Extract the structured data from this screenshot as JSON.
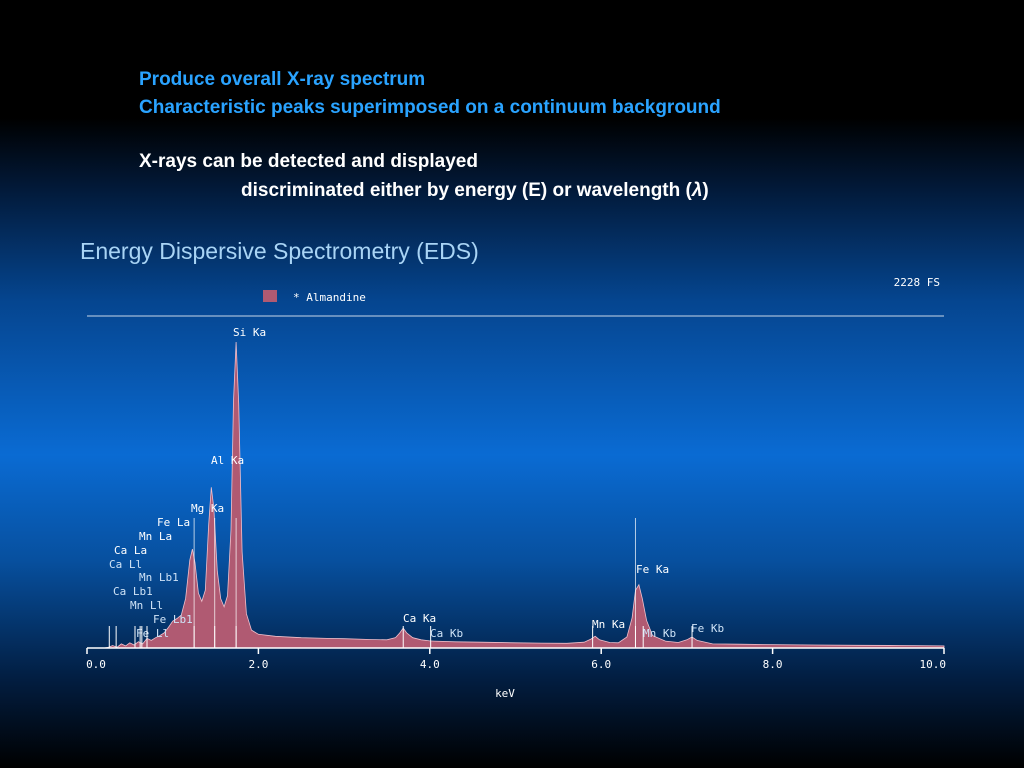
{
  "slide": {
    "line1": "Produce overall X-ray spectrum",
    "line2": "Characteristic peaks superimposed on a continuum background",
    "line3": "X-rays can be detected and displayed",
    "line4_pre": "discriminated either by energy (E) or wavelength (",
    "line4_symbol": "λ",
    "line4_post": ")",
    "section_title": "Energy Dispersive Spectrometry (EDS)"
  },
  "colors": {
    "heading_blue": "#2aa3ff",
    "spectrum_fill": "#b05a72",
    "spectrum_stroke": "#f0c0cc",
    "marker_line": "#ffffff"
  },
  "chart_data": {
    "type": "area",
    "title": "",
    "xlabel": "keV",
    "ylabel": "",
    "xlim": [
      0,
      10
    ],
    "full_scale_label": "2228 FS",
    "legend": {
      "name": "* Almandine",
      "color": "#b05a72",
      "position": "top-left"
    },
    "x_ticks": [
      "0.0",
      "2.0",
      "4.0",
      "6.0",
      "8.0",
      "10.0"
    ],
    "x_tick_values": [
      0,
      2,
      4,
      6,
      8,
      10
    ],
    "series": [
      {
        "name": "* Almandine",
        "points": [
          [
            0.0,
            0
          ],
          [
            0.2,
            0
          ],
          [
            0.25,
            5
          ],
          [
            0.3,
            18
          ],
          [
            0.35,
            5
          ],
          [
            0.4,
            30
          ],
          [
            0.45,
            15
          ],
          [
            0.5,
            38
          ],
          [
            0.55,
            22
          ],
          [
            0.6,
            46
          ],
          [
            0.65,
            30
          ],
          [
            0.7,
            70
          ],
          [
            0.75,
            55
          ],
          [
            0.8,
            75
          ],
          [
            0.85,
            90
          ],
          [
            0.9,
            110
          ],
          [
            0.95,
            150
          ],
          [
            1.0,
            195
          ],
          [
            1.05,
            215
          ],
          [
            1.1,
            240
          ],
          [
            1.15,
            360
          ],
          [
            1.2,
            640
          ],
          [
            1.23,
            720
          ],
          [
            1.26,
            620
          ],
          [
            1.3,
            400
          ],
          [
            1.34,
            340
          ],
          [
            1.38,
            420
          ],
          [
            1.42,
            900
          ],
          [
            1.45,
            1170
          ],
          [
            1.48,
            1020
          ],
          [
            1.52,
            560
          ],
          [
            1.56,
            360
          ],
          [
            1.6,
            300
          ],
          [
            1.64,
            380
          ],
          [
            1.68,
            860
          ],
          [
            1.71,
            1800
          ],
          [
            1.74,
            2228
          ],
          [
            1.77,
            1780
          ],
          [
            1.81,
            700
          ],
          [
            1.86,
            250
          ],
          [
            1.92,
            130
          ],
          [
            2.0,
            100
          ],
          [
            2.2,
            85
          ],
          [
            2.5,
            75
          ],
          [
            2.8,
            70
          ],
          [
            3.0,
            68
          ],
          [
            3.3,
            62
          ],
          [
            3.5,
            60
          ],
          [
            3.6,
            75
          ],
          [
            3.65,
            110
          ],
          [
            3.69,
            145
          ],
          [
            3.73,
            110
          ],
          [
            3.8,
            75
          ],
          [
            3.9,
            60
          ],
          [
            4.0,
            52
          ],
          [
            4.05,
            50
          ],
          [
            4.3,
            45
          ],
          [
            4.6,
            42
          ],
          [
            5.0,
            38
          ],
          [
            5.3,
            36
          ],
          [
            5.6,
            34
          ],
          [
            5.8,
            42
          ],
          [
            5.88,
            65
          ],
          [
            5.93,
            85
          ],
          [
            5.98,
            60
          ],
          [
            6.1,
            40
          ],
          [
            6.2,
            38
          ],
          [
            6.3,
            80
          ],
          [
            6.36,
            220
          ],
          [
            6.4,
            420
          ],
          [
            6.44,
            460
          ],
          [
            6.48,
            360
          ],
          [
            6.53,
            200
          ],
          [
            6.6,
            90
          ],
          [
            6.75,
            50
          ],
          [
            6.9,
            40
          ],
          [
            7.0,
            60
          ],
          [
            7.06,
            80
          ],
          [
            7.12,
            55
          ],
          [
            7.3,
            30
          ],
          [
            7.6,
            28
          ],
          [
            8.0,
            25
          ],
          [
            8.5,
            22
          ],
          [
            9.0,
            20
          ],
          [
            9.5,
            18
          ],
          [
            10.0,
            15
          ]
        ]
      }
    ],
    "markers": [
      {
        "energy": 0.26,
        "label": "Ca Ll"
      },
      {
        "energy": 0.34,
        "label": "Ca Lb1"
      },
      {
        "energy": 0.56,
        "label": "Mn Ll"
      },
      {
        "energy": 0.62,
        "label": "Fe Ll"
      },
      {
        "energy": 0.64,
        "label": "Mn Lb1"
      },
      {
        "energy": 0.7,
        "label": "Fe Lb1"
      },
      {
        "energy": 0.34,
        "label": "Ca La"
      },
      {
        "energy": 0.64,
        "label": "Mn La"
      },
      {
        "energy": 0.7,
        "label": "Fe La"
      },
      {
        "energy": 1.25,
        "label": "Mg Ka"
      },
      {
        "energy": 1.49,
        "label": "Al Ka"
      },
      {
        "energy": 1.74,
        "label": "Si Ka"
      },
      {
        "energy": 3.69,
        "label": "Ca Ka"
      },
      {
        "energy": 4.01,
        "label": "Ca Kb"
      },
      {
        "energy": 5.9,
        "label": "Mn Ka"
      },
      {
        "energy": 6.49,
        "label": "Mn Kb"
      },
      {
        "energy": 6.4,
        "label": "Fe Ka"
      },
      {
        "energy": 7.06,
        "label": "Fe Kb"
      }
    ]
  }
}
